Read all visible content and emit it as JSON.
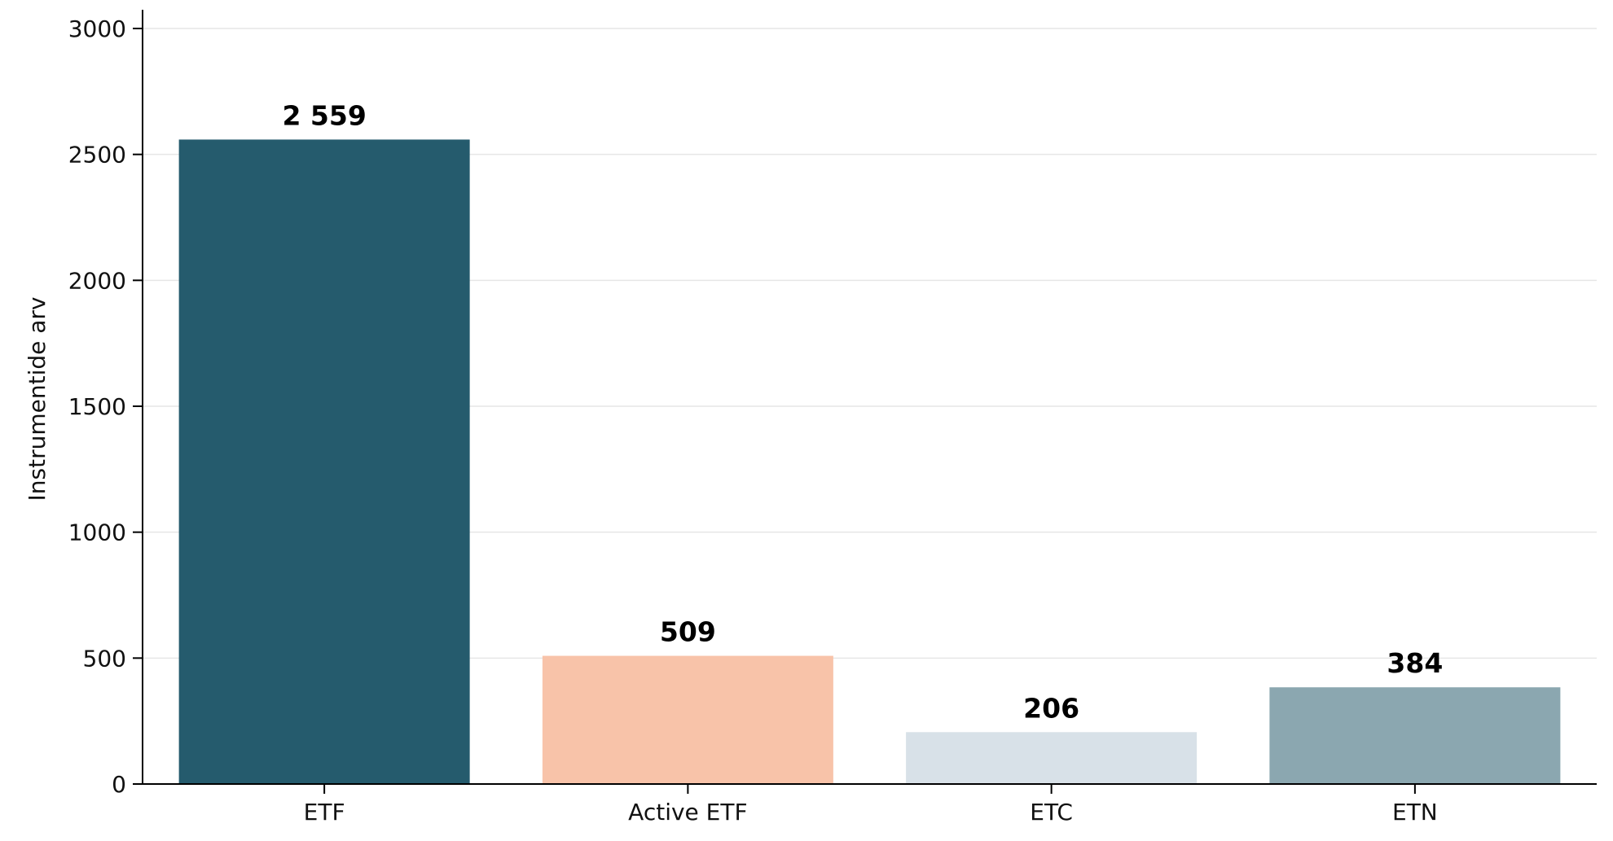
{
  "chart_data": {
    "type": "bar",
    "title": "",
    "xlabel": "",
    "ylabel": "Instrumentide arv",
    "categories": [
      "ETF",
      "Active ETF",
      "ETC",
      "ETN"
    ],
    "values": [
      2559,
      509,
      206,
      384
    ],
    "value_labels": [
      "2 559",
      "509",
      "206",
      "384"
    ],
    "colors": [
      "#255b6d",
      "#f8c3a9",
      "#d8e1e8",
      "#8ba7b0"
    ],
    "ylim": [
      0,
      3000
    ],
    "yticks": [
      0,
      500,
      1000,
      1500,
      2000,
      2500,
      3000
    ],
    "ytick_labels": [
      "0",
      "500",
      "1000",
      "1500",
      "2000",
      "2500",
      "3000"
    ],
    "grid": "horizontal",
    "legend": "none"
  }
}
